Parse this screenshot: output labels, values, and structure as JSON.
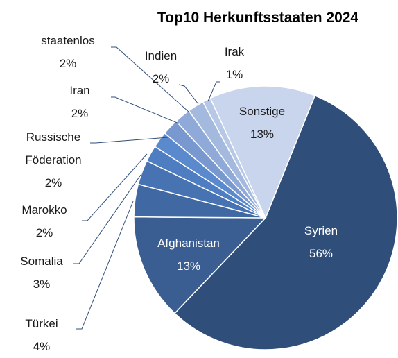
{
  "chart_data": {
    "type": "pie",
    "title": "Top10 Herkunftsstaaten 2024",
    "categories": [
      "Syrien",
      "Afghanistan",
      "Türkei",
      "Somalia",
      "Marokko",
      "Russische Föderation",
      "Iran",
      "staatenlos",
      "Indien",
      "Irak",
      "Sonstige"
    ],
    "values": [
      56,
      13,
      4,
      3,
      2,
      2,
      2,
      2,
      2,
      1,
      13
    ],
    "value_labels": [
      "56%",
      "13%",
      "4%",
      "3%",
      "2%",
      "2%",
      "2%",
      "2%",
      "2%",
      "1%",
      "13%"
    ],
    "colors": [
      "#2f4e79",
      "#3a5e92",
      "#4068a3",
      "#4773b3",
      "#4e7ec1",
      "#5a8acd",
      "#7898cf",
      "#8faad8",
      "#a3bade",
      "#b7c8e6",
      "#c9d5ec"
    ]
  }
}
